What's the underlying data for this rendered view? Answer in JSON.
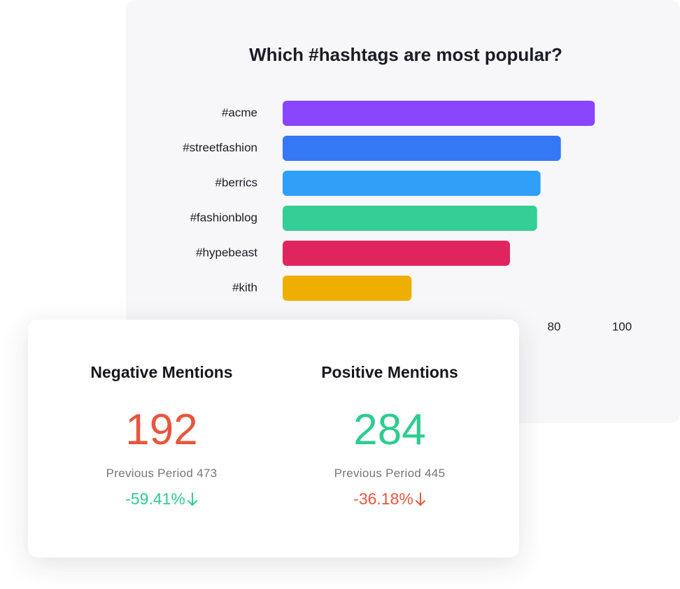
{
  "chart_data": {
    "type": "bar",
    "orientation": "horizontal",
    "title": "Which #hashtags are most popular?",
    "categories": [
      "#acme",
      "#streetfashion",
      "#berrics",
      "#fashionblog",
      "#hypebeast",
      "#kith"
    ],
    "values": [
      92,
      82,
      76,
      75,
      67,
      38
    ],
    "colors": [
      "#8a45ff",
      "#3478f6",
      "#2f9ff8",
      "#34cf96",
      "#e0245e",
      "#eeaf00"
    ],
    "xlim": [
      0,
      100
    ],
    "xticks": [
      80,
      100
    ]
  },
  "card": {
    "columns": [
      {
        "title": "Negative Mentions",
        "value": 192,
        "value_color": "#e8553e",
        "previous_label": "Previous Period",
        "previous_value": 473,
        "change": "-59.41%",
        "change_color": "#2ecc8f"
      },
      {
        "title": "Positive Mentions",
        "value": 284,
        "value_color": "#2ecc8f",
        "previous_label": "Previous Period",
        "previous_value": 445,
        "change": "-36.18%",
        "change_color": "#e8553e"
      }
    ]
  }
}
